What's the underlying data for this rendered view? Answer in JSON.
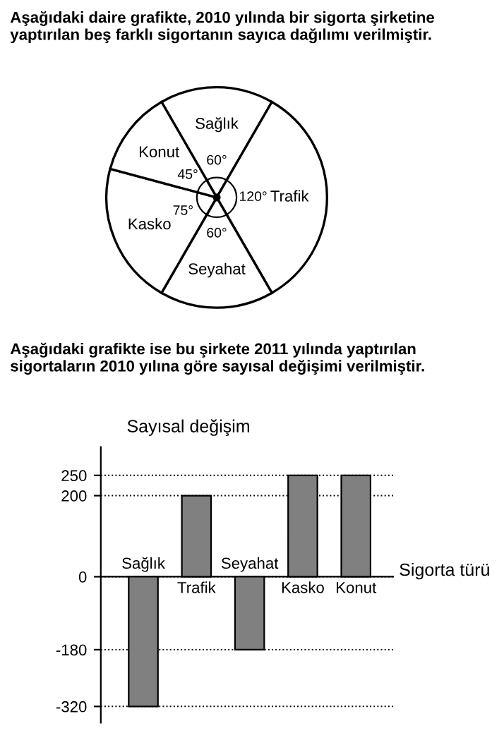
{
  "chart_data": [
    {
      "type": "pie",
      "title": "Aşağıdaki daire grafikte, 2010 yılında bir sigorta şirketine yaptırılan beş farklı sigortanın sayıca dağılımı verilmiştir.",
      "categories": [
        "Sağlık",
        "Trafik",
        "Seyahat",
        "Kasko",
        "Konut"
      ],
      "values": [
        60,
        120,
        60,
        75,
        45
      ],
      "value_labels": [
        "60°",
        "120°",
        "60°",
        "75°",
        "45°"
      ],
      "colors": [
        "#ffffff",
        "#ffffff",
        "#ffffff",
        "#ffffff",
        "#ffffff"
      ]
    },
    {
      "type": "bar",
      "title": "Aşağıdaki grafikte ise bu şirkete 2011 yılında yaptırılan sigortaların 2010 yılına göre sayısal değişimi verilmiştir.",
      "xlabel": "Sigorta türü",
      "ylabel": "Sayısal değişim",
      "categories": [
        "Sağlık",
        "Trafik",
        "Seyahat",
        "Kasko",
        "Konut"
      ],
      "values": [
        -320,
        200,
        -180,
        250,
        250
      ],
      "color": "#808080",
      "ylim": [
        -360,
        320
      ],
      "yticks": [
        -320,
        -180,
        0,
        200,
        250
      ],
      "grid": "y"
    }
  ]
}
